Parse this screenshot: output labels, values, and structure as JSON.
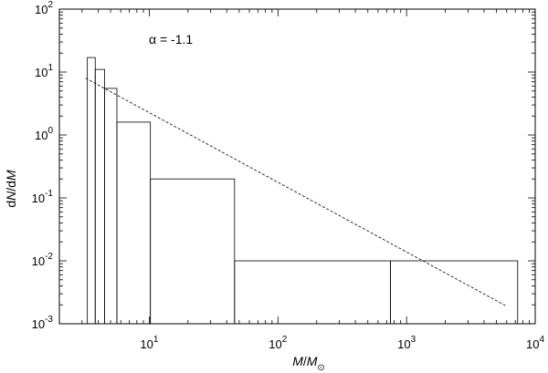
{
  "chart_data": {
    "type": "bar",
    "ylabel": {
      "p1": "d",
      "p2": "N",
      "p3": "/d",
      "p4": "M"
    },
    "xlabel": {
      "p1": "M",
      "p2": "/",
      "p3": "M",
      "sub": "⊙"
    },
    "annotation": "α = -1.1",
    "x_scale": "log",
    "y_scale": "log",
    "xlim": [
      2,
      10000
    ],
    "ylim": [
      0.001,
      100
    ],
    "x_ticks": [
      {
        "value": 10,
        "base": "10",
        "exp": "1"
      },
      {
        "value": 100,
        "base": "10",
        "exp": "2"
      },
      {
        "value": 1000,
        "base": "10",
        "exp": "3"
      },
      {
        "value": 10000,
        "base": "10",
        "exp": "4"
      }
    ],
    "y_ticks": [
      {
        "value": 0.001,
        "base": "10",
        "exp": "-3"
      },
      {
        "value": 0.01,
        "base": "10",
        "exp": "-2"
      },
      {
        "value": 0.1,
        "base": "10",
        "exp": "-1"
      },
      {
        "value": 1,
        "base": "10",
        "exp": "0"
      },
      {
        "value": 10,
        "base": "10",
        "exp": "1"
      },
      {
        "value": 100,
        "base": "10",
        "exp": "2"
      }
    ],
    "bins": [
      {
        "x0": 3.3,
        "x1": 3.8,
        "value": 17
      },
      {
        "x0": 3.8,
        "x1": 4.5,
        "value": 11
      },
      {
        "x0": 4.5,
        "x1": 5.6,
        "value": 5.5
      },
      {
        "x0": 5.6,
        "x1": 10.2,
        "value": 1.6
      },
      {
        "x0": 10.2,
        "x1": 46,
        "value": 0.2
      },
      {
        "x0": 46,
        "x1": 750,
        "value": 0.01
      },
      {
        "x0": 750,
        "x1": 7300,
        "value": 0.01
      }
    ],
    "fit_line": {
      "style": "dashed",
      "slope": -1.1,
      "points": [
        [
          3.2,
          8
        ],
        [
          6000,
          0.0019
        ]
      ]
    }
  }
}
